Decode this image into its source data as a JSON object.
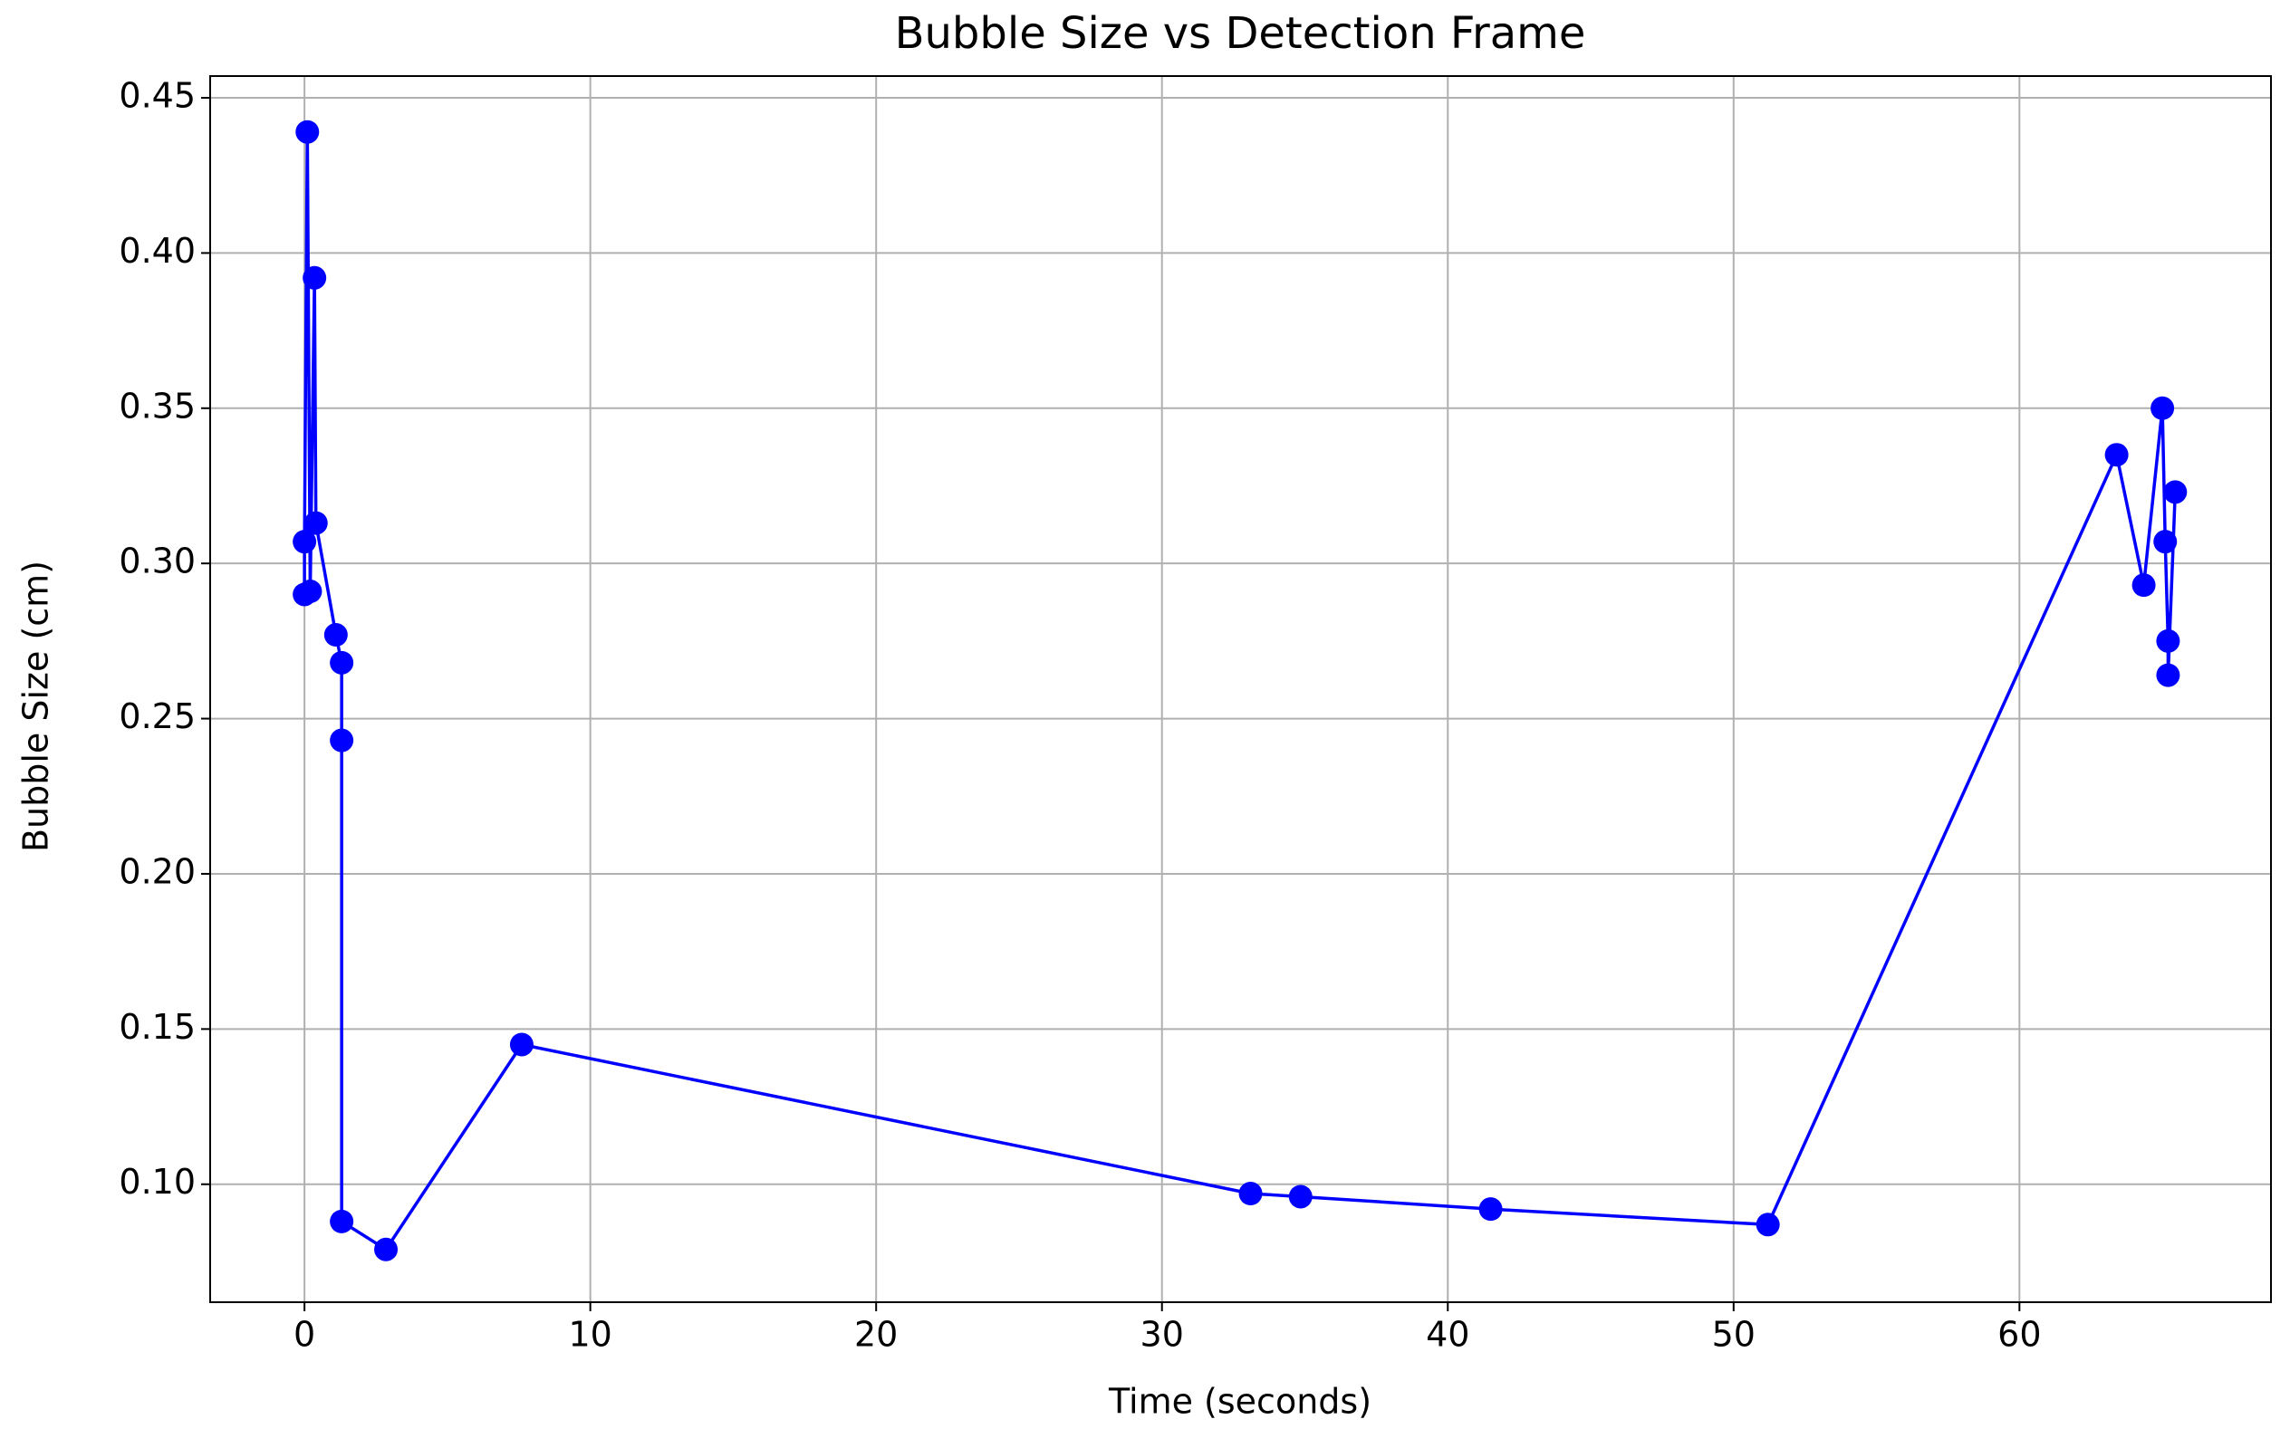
{
  "chart_data": {
    "type": "line",
    "title": "Bubble Size vs Detection Frame",
    "x_label": "Time (seconds)",
    "y_label": "Bubble Size (cm)",
    "x": [
      0.0,
      0.0,
      0.1,
      0.2,
      0.35,
      0.4,
      1.1,
      1.3,
      1.3,
      1.3,
      2.85,
      7.6,
      33.1,
      34.85,
      41.5,
      51.2,
      63.4,
      64.35,
      65.0,
      65.1,
      65.2,
      65.2,
      65.45
    ],
    "series": [
      {
        "color": "#0000ff",
        "marker": true,
        "values": [
          0.29,
          0.307,
          0.439,
          0.291,
          0.392,
          0.313,
          0.277,
          0.268,
          0.243,
          0.088,
          0.079,
          0.145,
          0.097,
          0.096,
          0.092,
          0.087,
          0.335,
          0.293,
          0.35,
          0.307,
          0.275,
          0.264,
          0.323
        ]
      }
    ],
    "xlim": [
      -3.3,
      68.8
    ],
    "ylim": [
      0.062,
      0.457
    ],
    "xticks": [
      0,
      10,
      20,
      30,
      40,
      50,
      60
    ],
    "yticks": [
      {
        "value": 0.1,
        "label": "0.10"
      },
      {
        "value": 0.15,
        "label": "0.15"
      },
      {
        "value": 0.2,
        "label": "0.20"
      },
      {
        "value": 0.25,
        "label": "0.25"
      },
      {
        "value": 0.3,
        "label": "0.30"
      },
      {
        "value": 0.35,
        "label": "0.35"
      },
      {
        "value": 0.4,
        "label": "0.40"
      },
      {
        "value": 0.45,
        "label": "0.45"
      }
    ],
    "grid": true
  }
}
